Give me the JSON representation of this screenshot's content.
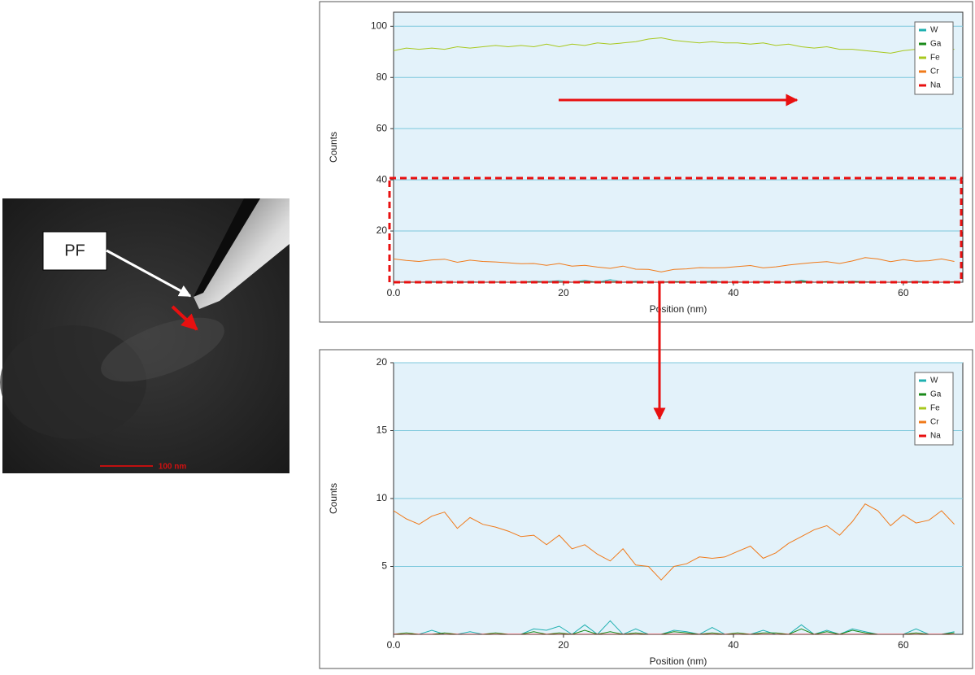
{
  "image": {
    "label": "PF",
    "scale_bar": "100 nm"
  },
  "chart_data": [
    {
      "type": "line",
      "ylabel": "Counts",
      "xlabel": "Position (nm)",
      "xlim": [
        0,
        67
      ],
      "xticks": [
        {
          "value": 0,
          "label": "0.0"
        },
        20,
        40,
        60
      ],
      "ylim": [
        0,
        105.5
      ],
      "yticks": [
        20,
        40,
        60,
        80,
        100
      ],
      "grid": true,
      "legend": "upper right",
      "x": [
        0,
        1.5,
        3,
        4.5,
        6,
        7.5,
        9,
        10.5,
        12,
        13.5,
        15,
        16.5,
        18,
        19.5,
        21,
        22.5,
        24,
        25.5,
        27,
        28.5,
        30,
        31.5,
        33,
        34.5,
        36,
        37.5,
        39,
        40.5,
        42,
        43.5,
        45,
        46.5,
        48,
        49.5,
        51,
        52.5,
        54,
        55.5,
        57,
        58.5,
        60,
        61.5,
        63,
        64.5,
        66
      ],
      "series": [
        {
          "name": "W",
          "color": "#1fb0b0",
          "values": [
            0,
            0,
            0,
            0.3,
            0,
            0,
            0.2,
            0,
            0,
            0,
            0,
            0.4,
            0.3,
            0.6,
            0,
            0.7,
            0,
            1.0,
            0,
            0.4,
            0,
            0,
            0.3,
            0.2,
            0,
            0.5,
            0,
            0,
            0,
            0.3,
            0,
            0,
            0.7,
            0,
            0.3,
            0,
            0.4,
            0.2,
            0,
            0,
            0,
            0.4,
            0,
            0,
            0.2
          ]
        },
        {
          "name": "Ga",
          "color": "#1a8a1a",
          "values": [
            0,
            0.1,
            0,
            0,
            0.1,
            0,
            0,
            0,
            0.1,
            0,
            0,
            0.2,
            0,
            0.1,
            0,
            0.3,
            0,
            0.2,
            0,
            0.1,
            0,
            0,
            0.2,
            0.1,
            0,
            0.1,
            0,
            0.1,
            0,
            0.1,
            0.1,
            0,
            0.4,
            0,
            0.2,
            0,
            0.3,
            0.1,
            0,
            0,
            0,
            0.1,
            0,
            0,
            0.1
          ]
        },
        {
          "name": "Fe",
          "color": "#a8c81e",
          "values": [
            90.5,
            91.5,
            91,
            91.5,
            91,
            92,
            91.5,
            92,
            92.5,
            92,
            92.5,
            92,
            93,
            92,
            93,
            92.5,
            93.5,
            93,
            93.5,
            94,
            95,
            95.5,
            94.5,
            94,
            93.5,
            94,
            93.5,
            93.5,
            93,
            93.5,
            92.5,
            93,
            92,
            91.5,
            92,
            91,
            91,
            90.5,
            90,
            89.5,
            90.5,
            91,
            91.5,
            91,
            91
          ]
        },
        {
          "name": "Cr",
          "color": "#f07a1a",
          "values": [
            9.1,
            8.5,
            8.1,
            8.7,
            9.0,
            7.8,
            8.6,
            8.1,
            7.9,
            7.6,
            7.2,
            7.3,
            6.6,
            7.3,
            6.3,
            6.6,
            5.9,
            5.4,
            6.3,
            5.1,
            5.0,
            4.0,
            5.0,
            5.2,
            5.7,
            5.6,
            5.7,
            6.1,
            6.5,
            5.6,
            6.0,
            6.7,
            7.2,
            7.7,
            8.0,
            7.3,
            8.3,
            9.6,
            9.1,
            8.0,
            8.8,
            8.2,
            8.4,
            9.1,
            8.1
          ]
        },
        {
          "name": "Na",
          "color": "#e81010",
          "values": [
            0,
            0,
            0,
            0,
            0,
            0,
            0,
            0,
            0,
            0,
            0,
            0,
            0,
            0,
            0,
            0,
            0,
            0,
            0,
            0,
            0,
            0,
            0,
            0,
            0,
            0,
            0,
            0,
            0,
            0,
            0,
            0,
            0,
            0,
            0,
            0,
            0,
            0,
            0,
            0,
            0,
            0,
            0,
            0,
            0
          ]
        }
      ]
    },
    {
      "type": "line",
      "ylabel": "Counts",
      "xlabel": "Position (nm)",
      "xlim": [
        0,
        67
      ],
      "xticks": [
        {
          "value": 0,
          "label": "0.0"
        },
        20,
        40,
        60
      ],
      "ylim": [
        0,
        20
      ],
      "yticks": [
        5,
        10,
        15,
        20
      ],
      "grid": true,
      "legend": "upper right",
      "x": [
        0,
        1.5,
        3,
        4.5,
        6,
        7.5,
        9,
        10.5,
        12,
        13.5,
        15,
        16.5,
        18,
        19.5,
        21,
        22.5,
        24,
        25.5,
        27,
        28.5,
        30,
        31.5,
        33,
        34.5,
        36,
        37.5,
        39,
        40.5,
        42,
        43.5,
        45,
        46.5,
        48,
        49.5,
        51,
        52.5,
        54,
        55.5,
        57,
        58.5,
        60,
        61.5,
        63,
        64.5,
        66
      ],
      "series": [
        {
          "name": "W",
          "color": "#1fb0b0",
          "values": [
            0,
            0,
            0,
            0.3,
            0,
            0,
            0.2,
            0,
            0,
            0,
            0,
            0.4,
            0.3,
            0.6,
            0,
            0.7,
            0,
            1.0,
            0,
            0.4,
            0,
            0,
            0.3,
            0.2,
            0,
            0.5,
            0,
            0,
            0,
            0.3,
            0,
            0,
            0.7,
            0,
            0.3,
            0,
            0.4,
            0.2,
            0,
            0,
            0,
            0.4,
            0,
            0,
            0.2
          ]
        },
        {
          "name": "Ga",
          "color": "#1a8a1a",
          "values": [
            0,
            0.1,
            0,
            0,
            0.1,
            0,
            0,
            0,
            0.1,
            0,
            0,
            0.2,
            0,
            0.1,
            0,
            0.3,
            0,
            0.2,
            0,
            0.1,
            0,
            0,
            0.2,
            0.1,
            0,
            0.1,
            0,
            0.1,
            0,
            0.1,
            0.1,
            0,
            0.4,
            0,
            0.2,
            0,
            0.3,
            0.1,
            0,
            0,
            0,
            0.1,
            0,
            0,
            0.1
          ]
        },
        {
          "name": "Fe",
          "color": "#a8c81e",
          "values": [
            90.5,
            91.5,
            91,
            91.5,
            91,
            92,
            91.5,
            92,
            92.5,
            92,
            92.5,
            92,
            93,
            92,
            93,
            92.5,
            93.5,
            93,
            93.5,
            94,
            95,
            95.5,
            94.5,
            94,
            93.5,
            94,
            93.5,
            93.5,
            93,
            93.5,
            92.5,
            93,
            92,
            91.5,
            92,
            91,
            91,
            90.5,
            90,
            89.5,
            90.5,
            91,
            91.5,
            91,
            91
          ]
        },
        {
          "name": "Cr",
          "color": "#f07a1a",
          "values": [
            9.1,
            8.5,
            8.1,
            8.7,
            9.0,
            7.8,
            8.6,
            8.1,
            7.9,
            7.6,
            7.2,
            7.3,
            6.6,
            7.3,
            6.3,
            6.6,
            5.9,
            5.4,
            6.3,
            5.1,
            5.0,
            4.0,
            5.0,
            5.2,
            5.7,
            5.6,
            5.7,
            6.1,
            6.5,
            5.6,
            6.0,
            6.7,
            7.2,
            7.7,
            8.0,
            7.3,
            8.3,
            9.6,
            9.1,
            8.0,
            8.8,
            8.2,
            8.4,
            9.1,
            8.1
          ]
        },
        {
          "name": "Na",
          "color": "#e81010",
          "values": [
            0,
            0,
            0,
            0,
            0,
            0,
            0,
            0,
            0,
            0,
            0,
            0,
            0,
            0,
            0,
            0,
            0,
            0,
            0,
            0,
            0,
            0,
            0,
            0,
            0,
            0,
            0,
            0,
            0,
            0,
            0,
            0,
            0,
            0,
            0,
            0,
            0,
            0,
            0,
            0,
            0,
            0,
            0,
            0,
            0
          ]
        }
      ]
    }
  ]
}
